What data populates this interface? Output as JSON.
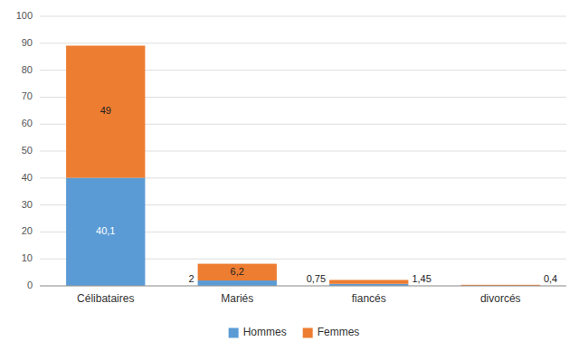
{
  "chart_data": {
    "type": "bar",
    "stacked": true,
    "categories": [
      "Célibataires",
      "Mariés",
      "fiancés",
      "divorcés"
    ],
    "series": [
      {
        "name": "Hommes",
        "color": "#5b9bd5",
        "values": [
          40.1,
          2,
          0.75,
          0
        ],
        "value_labels": [
          "40,1",
          "2",
          "0,75",
          null
        ]
      },
      {
        "name": "Femmes",
        "color": "#ed7d31",
        "values": [
          49,
          6.2,
          1.45,
          0.4
        ],
        "value_labels": [
          "49",
          "6,2",
          "1,45",
          "0,4"
        ]
      }
    ],
    "ylim": [
      0,
      100
    ],
    "yticks": [
      0,
      10,
      20,
      30,
      40,
      50,
      60,
      70,
      80,
      90,
      100
    ],
    "grid": true,
    "legend": "bottom",
    "data_labels": true
  }
}
